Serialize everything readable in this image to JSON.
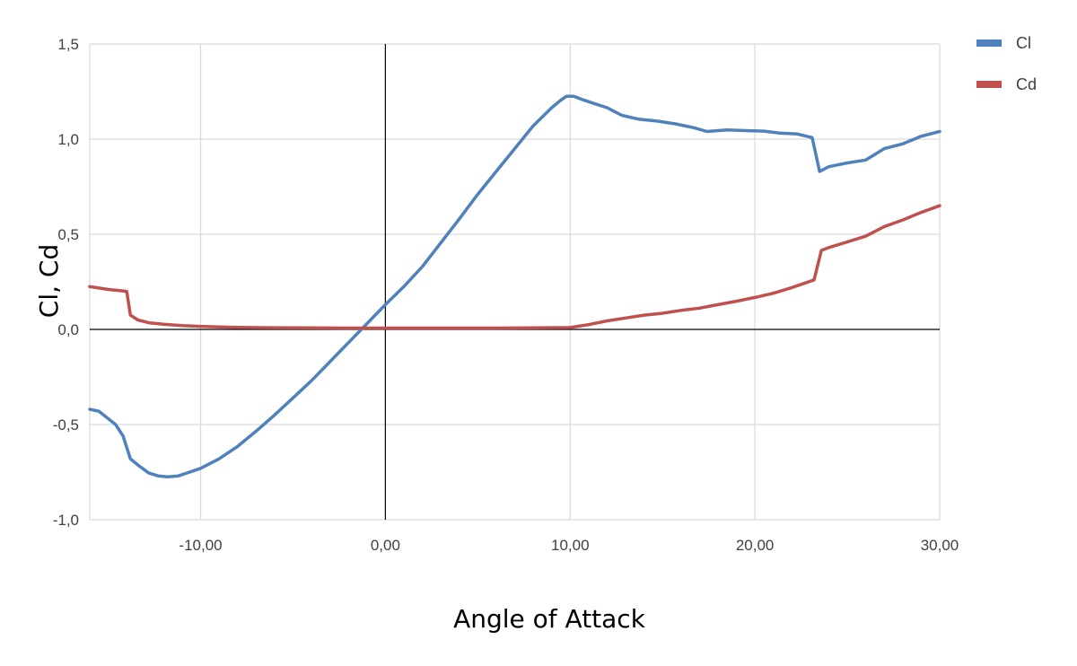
{
  "chart_data": {
    "type": "line",
    "title": "",
    "xlabel": "Angle of Attack",
    "ylabel": "Cl, Cd",
    "xlim": [
      -16.0,
      30.0
    ],
    "ylim": [
      -1.0,
      1.5
    ],
    "x_ticks": [
      -10,
      0,
      10,
      20,
      30
    ],
    "x_tick_labels": [
      "-10,00",
      "0,00",
      "10,00",
      "20,00",
      "30,00"
    ],
    "y_ticks": [
      -1.0,
      -0.5,
      0.0,
      0.5,
      1.0,
      1.5
    ],
    "y_tick_labels": [
      "-1,0",
      "-0,5",
      "0,0",
      "0,5",
      "1,0",
      "1,5"
    ],
    "grid": true,
    "legend_position": "top-right",
    "series": [
      {
        "name": "Cl",
        "color": "#4f81bd",
        "points": [
          [
            -16.0,
            -0.42
          ],
          [
            -15.5,
            -0.43
          ],
          [
            -14.6,
            -0.5
          ],
          [
            -14.2,
            -0.56
          ],
          [
            -13.8,
            -0.68
          ],
          [
            -13.3,
            -0.72
          ],
          [
            -12.8,
            -0.755
          ],
          [
            -12.3,
            -0.77
          ],
          [
            -11.8,
            -0.775
          ],
          [
            -11.2,
            -0.77
          ],
          [
            -10.6,
            -0.75
          ],
          [
            -10.0,
            -0.73
          ],
          [
            -9.0,
            -0.68
          ],
          [
            -8.0,
            -0.615
          ],
          [
            -7.0,
            -0.535
          ],
          [
            -6.0,
            -0.45
          ],
          [
            -5.0,
            -0.36
          ],
          [
            -4.0,
            -0.27
          ],
          [
            -3.0,
            -0.17
          ],
          [
            -2.0,
            -0.07
          ],
          [
            -1.0,
            0.03
          ],
          [
            0.0,
            0.13
          ],
          [
            1.0,
            0.225
          ],
          [
            2.0,
            0.33
          ],
          [
            3.0,
            0.455
          ],
          [
            4.0,
            0.58
          ],
          [
            5.0,
            0.71
          ],
          [
            6.0,
            0.83
          ],
          [
            7.0,
            0.95
          ],
          [
            8.0,
            1.07
          ],
          [
            9.0,
            1.165
          ],
          [
            9.5,
            1.205
          ],
          [
            9.8,
            1.225
          ],
          [
            10.2,
            1.225
          ],
          [
            10.6,
            1.21
          ],
          [
            11.2,
            1.19
          ],
          [
            12.0,
            1.165
          ],
          [
            12.8,
            1.125
          ],
          [
            13.7,
            1.105
          ],
          [
            14.7,
            1.095
          ],
          [
            15.7,
            1.08
          ],
          [
            16.7,
            1.06
          ],
          [
            17.4,
            1.04
          ],
          [
            18.5,
            1.048
          ],
          [
            19.5,
            1.045
          ],
          [
            20.5,
            1.042
          ],
          [
            21.3,
            1.032
          ],
          [
            22.3,
            1.027
          ],
          [
            23.1,
            1.008
          ],
          [
            23.5,
            0.83
          ],
          [
            24.0,
            0.855
          ],
          [
            25.0,
            0.875
          ],
          [
            26.0,
            0.89
          ],
          [
            27.0,
            0.95
          ],
          [
            28.0,
            0.975
          ],
          [
            29.0,
            1.015
          ],
          [
            30.0,
            1.04
          ]
        ]
      },
      {
        "name": "Cd",
        "color": "#c0504d",
        "points": [
          [
            -16.0,
            0.225
          ],
          [
            -15.0,
            0.21
          ],
          [
            -14.0,
            0.2
          ],
          [
            -13.8,
            0.075
          ],
          [
            -13.4,
            0.05
          ],
          [
            -12.8,
            0.035
          ],
          [
            -12.0,
            0.027
          ],
          [
            -11.0,
            0.02
          ],
          [
            -10.0,
            0.016
          ],
          [
            -9.0,
            0.013
          ],
          [
            -8.0,
            0.011
          ],
          [
            -6.0,
            0.009
          ],
          [
            -4.0,
            0.008
          ],
          [
            -2.0,
            0.007
          ],
          [
            0.0,
            0.007
          ],
          [
            2.0,
            0.007
          ],
          [
            4.0,
            0.007
          ],
          [
            6.0,
            0.007
          ],
          [
            8.0,
            0.008
          ],
          [
            10.0,
            0.01
          ],
          [
            11.0,
            0.025
          ],
          [
            12.0,
            0.045
          ],
          [
            13.0,
            0.06
          ],
          [
            14.0,
            0.075
          ],
          [
            15.0,
            0.085
          ],
          [
            16.0,
            0.1
          ],
          [
            17.0,
            0.112
          ],
          [
            18.0,
            0.13
          ],
          [
            19.0,
            0.148
          ],
          [
            20.0,
            0.168
          ],
          [
            21.0,
            0.19
          ],
          [
            22.0,
            0.22
          ],
          [
            23.2,
            0.26
          ],
          [
            23.6,
            0.415
          ],
          [
            24.0,
            0.43
          ],
          [
            25.0,
            0.46
          ],
          [
            26.0,
            0.49
          ],
          [
            27.0,
            0.54
          ],
          [
            28.0,
            0.575
          ],
          [
            29.0,
            0.615
          ],
          [
            30.0,
            0.65
          ]
        ]
      }
    ]
  }
}
